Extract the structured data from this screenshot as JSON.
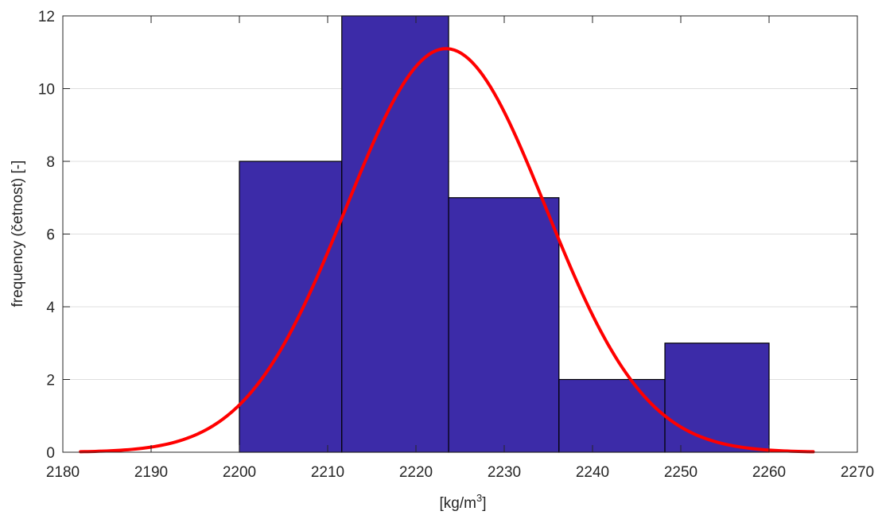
{
  "chart_data": {
    "type": "bar",
    "subtype": "histogram-with-normal-fit",
    "title": "",
    "xlabel": "[kg/m",
    "xlabel_superscript": "3",
    "xlabel_suffix": "]",
    "ylabel": "frequency (četnost) [-]",
    "xlim": [
      2180,
      2270
    ],
    "ylim": [
      0,
      12
    ],
    "xticks": [
      2180,
      2190,
      2200,
      2210,
      2220,
      2230,
      2240,
      2250,
      2260,
      2270
    ],
    "yticks": [
      0,
      2,
      4,
      6,
      8,
      10,
      12
    ],
    "grid": true,
    "bins": [
      {
        "from": 2200.0,
        "to": 2211.6,
        "value": 8
      },
      {
        "from": 2211.6,
        "to": 2223.7,
        "value": 12
      },
      {
        "from": 2223.7,
        "to": 2236.2,
        "value": 7
      },
      {
        "from": 2236.2,
        "to": 2248.2,
        "value": 2
      },
      {
        "from": 2248.2,
        "to": 2260.0,
        "value": 3
      }
    ],
    "fit_curve": {
      "type": "normal",
      "mean": 2223.4,
      "std": 11.3,
      "peak": 11.1,
      "x_range": [
        2182,
        2265
      ]
    },
    "colors": {
      "bar_fill": "#3c2ba8",
      "bar_edge": "#000000",
      "curve": "#ff0000",
      "grid": "#dfdfdf",
      "axis": "#262626"
    }
  }
}
